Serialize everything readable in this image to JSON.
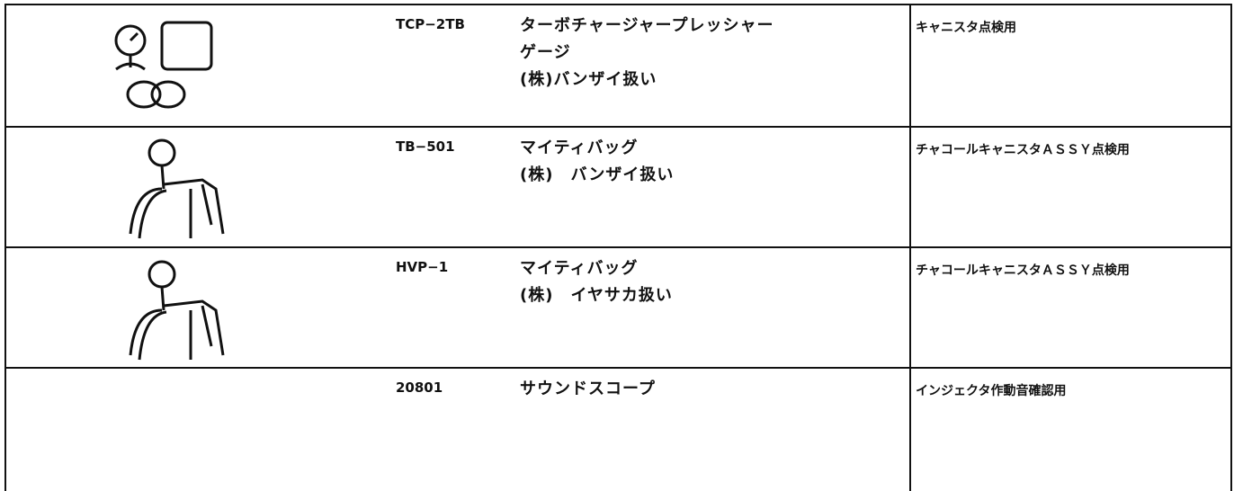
{
  "table": {
    "rows": [
      {
        "part_no": "TCP−2TB",
        "name": [
          "ターボチャージャープレッシャー",
          "ゲージ",
          "(株)バンザイ扱い"
        ],
        "use": "キャニスタ点検用"
      },
      {
        "part_no": "TB−501",
        "name": [
          "マイティバッグ",
          "(株)　バンザイ扱い"
        ],
        "use": "チャコールキャニスタＡＳＳＹ点検用"
      },
      {
        "part_no": "HVP−1",
        "name": [
          "マイティバッグ",
          "(株)　イヤサカ扱い"
        ],
        "use": "チャコールキャニスタＡＳＳＹ点検用"
      },
      {
        "part_no": "20801",
        "name": [
          "サウンドスコープ"
        ],
        "use": "インジェクタ作動音確認用"
      }
    ]
  }
}
